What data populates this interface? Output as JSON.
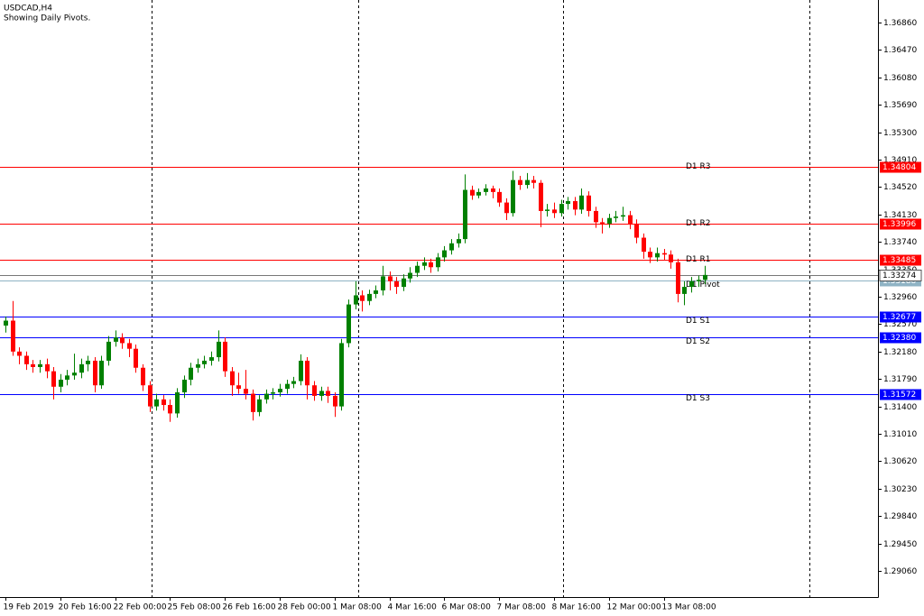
{
  "chart_data": {
    "type": "candlestick",
    "title": "USDCAD,H4",
    "subtitle": "Showing Daily Pivots.",
    "categories": [
      "19 Feb 2019",
      null,
      null,
      null,
      null,
      null,
      null,
      null,
      "20 Feb 16:00",
      null,
      null,
      null,
      null,
      null,
      null,
      null,
      "22 Feb 00:00",
      null,
      null,
      null,
      null,
      null,
      null,
      null,
      "25 Feb 08:00",
      null,
      null,
      null,
      null,
      null,
      null,
      null,
      "26 Feb 16:00",
      null,
      null,
      null,
      null,
      null,
      null,
      null,
      "28 Feb 00:00",
      null,
      null,
      null,
      null,
      null,
      null,
      null,
      "1 Mar 08:00",
      null,
      null,
      null,
      null,
      null,
      null,
      null,
      "4 Mar 16:00",
      null,
      null,
      null,
      null,
      null,
      null,
      null,
      "6 Mar 08:00",
      null,
      null,
      null,
      null,
      null,
      null,
      null,
      "7 Mar 08:00",
      null,
      null,
      null,
      null,
      null,
      null,
      null,
      "8 Mar 16:00",
      null,
      null,
      null,
      null,
      null,
      null,
      null,
      "12 Mar 00:00",
      null,
      null,
      null,
      null,
      null,
      null,
      null,
      "13 Mar 08:00",
      null,
      null,
      null,
      null,
      null,
      null
    ],
    "open": [
      1.3255,
      1.3262,
      1.3218,
      1.3212,
      1.32,
      1.3196,
      1.32,
      1.319,
      1.3168,
      1.3178,
      1.3184,
      1.3188,
      1.32,
      1.3205,
      1.317,
      1.3205,
      1.3232,
      1.3238,
      1.323,
      1.3222,
      1.3195,
      1.317,
      1.314,
      1.315,
      1.3142,
      1.313,
      1.316,
      1.3178,
      1.3195,
      1.32,
      1.3205,
      1.321,
      1.3232,
      1.319,
      1.317,
      1.3165,
      1.3158,
      1.3132,
      1.315,
      1.3158,
      1.316,
      1.3165,
      1.3172,
      1.3176,
      1.3205,
      1.317,
      1.3155,
      1.3162,
      1.3155,
      1.314,
      1.323,
      1.3285,
      1.3298,
      1.329,
      1.33,
      1.3305,
      1.3325,
      1.3318,
      1.331,
      1.3322,
      1.333,
      1.334,
      1.3345,
      1.3338,
      1.3352,
      1.3362,
      1.3372,
      1.3378,
      1.3448,
      1.344,
      1.3445,
      1.345,
      1.3445,
      1.343,
      1.3415,
      1.3462,
      1.3455,
      1.3462,
      1.3458,
      1.3418,
      1.342,
      1.3415,
      1.3428,
      1.3432,
      1.342,
      1.344,
      1.3418,
      1.3402,
      1.34,
      1.3408,
      1.341,
      1.3412,
      1.34,
      1.338,
      1.336,
      1.3352,
      1.3358,
      1.3356,
      1.3345,
      1.33,
      1.331,
      1.3318,
      1.332
    ],
    "high": [
      1.3268,
      1.329,
      1.3224,
      1.3218,
      1.3206,
      1.3206,
      1.3208,
      1.3196,
      1.3186,
      1.3192,
      1.3215,
      1.3208,
      1.3212,
      1.321,
      1.3212,
      1.324,
      1.3248,
      1.3244,
      1.3236,
      1.3228,
      1.32,
      1.3176,
      1.3158,
      1.3156,
      1.315,
      1.3166,
      1.3184,
      1.3202,
      1.3208,
      1.3212,
      1.3218,
      1.3248,
      1.3238,
      1.3196,
      1.3188,
      1.3192,
      1.3164,
      1.3156,
      1.3164,
      1.3166,
      1.3172,
      1.3178,
      1.3182,
      1.3214,
      1.321,
      1.3176,
      1.3168,
      1.3168,
      1.316,
      1.3236,
      1.3292,
      1.3318,
      1.3305,
      1.3306,
      1.3312,
      1.334,
      1.3332,
      1.3324,
      1.3328,
      1.3338,
      1.3346,
      1.3352,
      1.335,
      1.3358,
      1.3368,
      1.3378,
      1.3386,
      1.347,
      1.3454,
      1.345,
      1.3456,
      1.3454,
      1.345,
      1.3436,
      1.3475,
      1.3468,
      1.3472,
      1.3468,
      1.3462,
      1.3428,
      1.343,
      1.3434,
      1.3438,
      1.3438,
      1.345,
      1.3446,
      1.3424,
      1.3408,
      1.3414,
      1.3418,
      1.3424,
      1.3418,
      1.3406,
      1.3386,
      1.3366,
      1.3366,
      1.3364,
      1.3362,
      1.335,
      1.3318,
      1.3324,
      1.3326,
      1.334
    ],
    "low": [
      1.3245,
      1.3212,
      1.32,
      1.3192,
      1.3188,
      1.3188,
      1.318,
      1.315,
      1.316,
      1.317,
      1.3178,
      1.318,
      1.319,
      1.316,
      1.3165,
      1.3198,
      1.3225,
      1.3222,
      1.321,
      1.3188,
      1.3162,
      1.3132,
      1.3134,
      1.3134,
      1.3118,
      1.3124,
      1.3152,
      1.317,
      1.3188,
      1.3194,
      1.3198,
      1.3204,
      1.3182,
      1.3155,
      1.3158,
      1.315,
      1.312,
      1.3126,
      1.3144,
      1.315,
      1.3154,
      1.3158,
      1.3166,
      1.317,
      1.315,
      1.3148,
      1.3148,
      1.3145,
      1.3125,
      1.3134,
      1.3224,
      1.3278,
      1.3275,
      1.3284,
      1.3294,
      1.3298,
      1.3305,
      1.33,
      1.3304,
      1.3316,
      1.3324,
      1.3334,
      1.333,
      1.3332,
      1.3346,
      1.3356,
      1.3366,
      1.3372,
      1.3434,
      1.3436,
      1.344,
      1.3436,
      1.3424,
      1.3405,
      1.341,
      1.3448,
      1.345,
      1.345,
      1.3395,
      1.341,
      1.3408,
      1.341,
      1.342,
      1.3412,
      1.3414,
      1.341,
      1.3394,
      1.3386,
      1.3394,
      1.3402,
      1.3404,
      1.3392,
      1.3372,
      1.335,
      1.3344,
      1.3346,
      1.3348,
      1.3336,
      1.3288,
      1.3284,
      1.3302,
      1.331,
      1.3314
    ],
    "close": [
      1.3262,
      1.3218,
      1.3212,
      1.32,
      1.3196,
      1.32,
      1.319,
      1.3168,
      1.3178,
      1.3184,
      1.3188,
      1.32,
      1.3205,
      1.317,
      1.3205,
      1.3232,
      1.3238,
      1.323,
      1.3222,
      1.3195,
      1.317,
      1.314,
      1.315,
      1.3142,
      1.313,
      1.316,
      1.3178,
      1.3195,
      1.32,
      1.3205,
      1.321,
      1.3232,
      1.319,
      1.317,
      1.3165,
      1.3158,
      1.3132,
      1.315,
      1.3158,
      1.316,
      1.3165,
      1.3172,
      1.3176,
      1.3205,
      1.317,
      1.3155,
      1.3162,
      1.3155,
      1.314,
      1.323,
      1.3285,
      1.3298,
      1.329,
      1.33,
      1.3305,
      1.3325,
      1.3318,
      1.331,
      1.3322,
      1.333,
      1.334,
      1.3345,
      1.3338,
      1.3352,
      1.3362,
      1.3372,
      1.3378,
      1.3448,
      1.344,
      1.3445,
      1.345,
      1.3445,
      1.343,
      1.3415,
      1.3462,
      1.3455,
      1.3462,
      1.3458,
      1.3418,
      1.342,
      1.3415,
      1.3428,
      1.3432,
      1.342,
      1.344,
      1.3418,
      1.3402,
      1.34,
      1.3408,
      1.341,
      1.3412,
      1.34,
      1.338,
      1.336,
      1.3352,
      1.3358,
      1.3356,
      1.3345,
      1.33,
      1.331,
      1.3318,
      1.332,
      1.3327
    ],
    "up_color": "#008000",
    "down_color": "#ff0000",
    "ylim": [
      1.28688,
      1.37181
    ],
    "yticks": [
      {
        "value": 1.3686,
        "label": "1.36860"
      },
      {
        "value": 1.3647,
        "label": "1.36470"
      },
      {
        "value": 1.3608,
        "label": "1.36080"
      },
      {
        "value": 1.3569,
        "label": "1.35690"
      },
      {
        "value": 1.353,
        "label": "1.35300"
      },
      {
        "value": 1.3491,
        "label": "1.34910"
      },
      {
        "value": 1.3452,
        "label": "1.34520"
      },
      {
        "value": 1.3413,
        "label": "1.34130"
      },
      {
        "value": 1.3374,
        "label": "1.33740"
      },
      {
        "value": 1.3335,
        "label": "1.33350"
      },
      {
        "value": 1.3296,
        "label": "1.32960"
      },
      {
        "value": 1.3257,
        "label": "1.32570"
      },
      {
        "value": 1.3218,
        "label": "1.32180"
      },
      {
        "value": 1.3179,
        "label": "1.31790"
      },
      {
        "value": 1.314,
        "label": "1.31400"
      },
      {
        "value": 1.3101,
        "label": "1.31010"
      },
      {
        "value": 1.3062,
        "label": "1.30620"
      },
      {
        "value": 1.3023,
        "label": "1.30230"
      },
      {
        "value": 1.2984,
        "label": "1.29840"
      },
      {
        "value": 1.2945,
        "label": "1.29450"
      },
      {
        "value": 1.2906,
        "label": "1.29060"
      }
    ],
    "levels": {
      "names": [
        "D1 R3",
        "D1 R2",
        "D1 R1",
        "D1 Pivot",
        "D1 S1",
        "D1 S2",
        "D1 S3"
      ],
      "values": [
        1.34804,
        1.33996,
        1.33485,
        1.33188,
        1.32677,
        1.3238,
        1.31572
      ],
      "value_labels": [
        "1.34804",
        "1.33996",
        "1.33485",
        "1.33188",
        "1.32677",
        "1.32380",
        "1.31572"
      ],
      "colors": [
        "#ff0000",
        "#ff0000",
        "#ff0000",
        "#8fb3c4",
        "#0000ff",
        "#0000ff",
        "#0000ff"
      ]
    },
    "bid": 1.33274
  }
}
